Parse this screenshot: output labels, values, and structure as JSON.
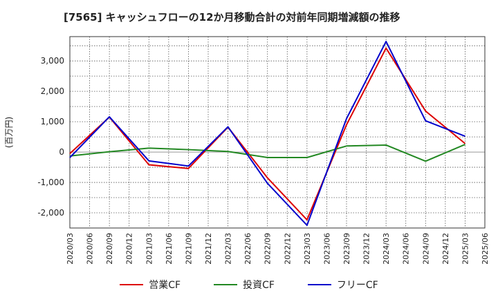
{
  "chart_data": {
    "type": "line",
    "title": "[7565]  キャッシュフローの12か月移動合計の対前年同期増減額の推移",
    "xlabel": "",
    "ylabel": "(百万円)",
    "ylim": [
      -2500,
      3800
    ],
    "yticks": [
      3000,
      2000,
      1000,
      0,
      -1000,
      -2000
    ],
    "ytick_labels": [
      "3,000",
      "2,000",
      "1,000",
      "0",
      "-1,000",
      "-2,000"
    ],
    "categories": [
      "2020/03",
      "2020/06",
      "2020/09",
      "2020/12",
      "2021/03",
      "2021/06",
      "2021/09",
      "2021/12",
      "2022/03",
      "2022/06",
      "2022/09",
      "2022/12",
      "2023/03",
      "2023/06",
      "2023/09",
      "2023/12",
      "2024/03",
      "2024/06",
      "2024/09",
      "2024/12",
      "2025/03",
      "2025/06"
    ],
    "grid": true,
    "legend_position": "bottom-center",
    "series": [
      {
        "name": "営業CF",
        "color": "#dd0000",
        "x": [
          "2020/03",
          "2020/09",
          "2021/03",
          "2021/09",
          "2022/03",
          "2022/09",
          "2023/03",
          "2023/09",
          "2024/03",
          "2024/09",
          "2025/03"
        ],
        "values": [
          -50,
          1150,
          -420,
          -540,
          820,
          -850,
          -2230,
          900,
          3420,
          1350,
          280
        ]
      },
      {
        "name": "投資CF",
        "color": "#228822",
        "x": [
          "2020/03",
          "2020/09",
          "2021/03",
          "2021/09",
          "2022/03",
          "2022/09",
          "2023/03",
          "2023/09",
          "2024/03",
          "2024/09",
          "2025/03"
        ],
        "values": [
          -130,
          10,
          130,
          80,
          20,
          -180,
          -180,
          200,
          230,
          -300,
          250
        ]
      },
      {
        "name": "フリーCF",
        "color": "#0000cc",
        "x": [
          "2020/03",
          "2020/09",
          "2021/03",
          "2021/09",
          "2022/03",
          "2022/09",
          "2023/03",
          "2023/09",
          "2024/03",
          "2024/09",
          "2025/03"
        ],
        "values": [
          -180,
          1160,
          -290,
          -460,
          830,
          -1030,
          -2410,
          1100,
          3640,
          1030,
          520
        ]
      }
    ]
  }
}
